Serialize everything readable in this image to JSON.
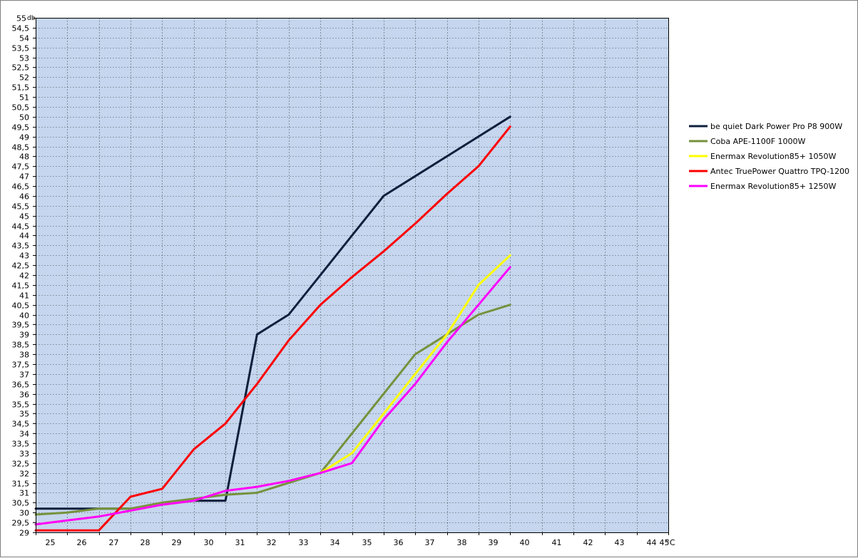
{
  "chart_data": {
    "type": "line",
    "title": "",
    "xlabel": "",
    "ylabel": "",
    "x_unit": "°C",
    "y_unit": "db",
    "xlim": [
      25,
      45
    ],
    "ylim": [
      29,
      55
    ],
    "x_ticks": [
      "25",
      "26",
      "27",
      "28",
      "29",
      "30",
      "31",
      "32",
      "33",
      "34",
      "35",
      "36",
      "37",
      "38",
      "39",
      "40",
      "41",
      "42",
      "43",
      "44",
      "45"
    ],
    "y_ticks": [
      "29",
      "29,5",
      "30",
      "30,5",
      "31",
      "31,5",
      "32",
      "32,5",
      "33",
      "33,5",
      "34",
      "34,5",
      "35",
      "35,5",
      "36",
      "36,5",
      "37",
      "37,5",
      "38",
      "38,5",
      "39",
      "39,5",
      "40",
      "40,5",
      "41",
      "41,5",
      "42",
      "42,5",
      "43",
      "43,5",
      "44",
      "44,5",
      "45",
      "45,5",
      "46",
      "46,5",
      "47",
      "47,5",
      "48",
      "48,5",
      "49",
      "49,5",
      "50",
      "50,5",
      "51",
      "51,5",
      "52",
      "52,5",
      "53",
      "53,5",
      "54",
      "54,5",
      "55"
    ],
    "grid": true,
    "plot_background": "#C5D6EE",
    "legend_position": "right",
    "series": [
      {
        "name": "be quiet Dark Power Pro P8 900W",
        "color": "#0F1F3C",
        "points": [
          [
            25,
            30.2
          ],
          [
            27,
            30.2
          ],
          [
            28,
            30.2
          ],
          [
            29,
            30.4
          ],
          [
            30,
            30.6
          ],
          [
            31,
            30.6
          ],
          [
            32,
            39
          ],
          [
            33,
            40
          ],
          [
            34,
            42
          ],
          [
            35,
            44
          ],
          [
            36,
            46
          ],
          [
            37,
            47
          ],
          [
            38,
            48
          ],
          [
            39,
            49
          ],
          [
            40,
            50
          ]
        ]
      },
      {
        "name": "Coba APE-1100F 1000W",
        "color": "#76923C",
        "points": [
          [
            25,
            29.9
          ],
          [
            26,
            30
          ],
          [
            27,
            30.2
          ],
          [
            28,
            30.2
          ],
          [
            29,
            30.5
          ],
          [
            30,
            30.7
          ],
          [
            31,
            30.9
          ],
          [
            32,
            31
          ],
          [
            33,
            31.5
          ],
          [
            34,
            32
          ],
          [
            35,
            34
          ],
          [
            36,
            36
          ],
          [
            37,
            38
          ],
          [
            38,
            39
          ],
          [
            39,
            40
          ],
          [
            40,
            40.5
          ]
        ]
      },
      {
        "name": "Enermax Revolution85+ 1050W",
        "color": "#FFFF00",
        "points": [
          [
            25,
            29.4
          ],
          [
            26,
            29.6
          ],
          [
            27,
            29.8
          ],
          [
            28,
            30.1
          ],
          [
            29,
            30.4
          ],
          [
            30,
            30.6
          ],
          [
            31,
            31.1
          ],
          [
            32,
            31.3
          ],
          [
            33,
            31.6
          ],
          [
            34,
            32
          ],
          [
            35,
            33
          ],
          [
            36,
            35
          ],
          [
            37,
            37
          ],
          [
            38,
            39
          ],
          [
            39,
            41.5
          ],
          [
            40,
            43
          ]
        ]
      },
      {
        "name": "Antec TruePower Quattro TPQ-1200",
        "color": "#FF0000",
        "points": [
          [
            25,
            29.1
          ],
          [
            27,
            29.1
          ],
          [
            28,
            30.8
          ],
          [
            29,
            31.2
          ],
          [
            30,
            33.2
          ],
          [
            31,
            34.5
          ],
          [
            32,
            36.5
          ],
          [
            33,
            38.7
          ],
          [
            34,
            40.5
          ],
          [
            35,
            41.9
          ],
          [
            36,
            43.2
          ],
          [
            37,
            44.6
          ],
          [
            38,
            46.1
          ],
          [
            39,
            47.5
          ],
          [
            40,
            49.5
          ]
        ]
      },
      {
        "name": "Enermax Revolution85+ 1250W",
        "color": "#FF00FF",
        "points": [
          [
            25,
            29.4
          ],
          [
            26,
            29.6
          ],
          [
            27,
            29.8
          ],
          [
            28,
            30.1
          ],
          [
            29,
            30.4
          ],
          [
            30,
            30.6
          ],
          [
            31,
            31.1
          ],
          [
            32,
            31.3
          ],
          [
            33,
            31.6
          ],
          [
            34,
            32
          ],
          [
            35,
            32.5
          ],
          [
            36,
            34.7
          ],
          [
            37,
            36.5
          ],
          [
            38,
            38.6
          ],
          [
            39,
            40.5
          ],
          [
            40,
            42.4
          ]
        ]
      }
    ]
  }
}
